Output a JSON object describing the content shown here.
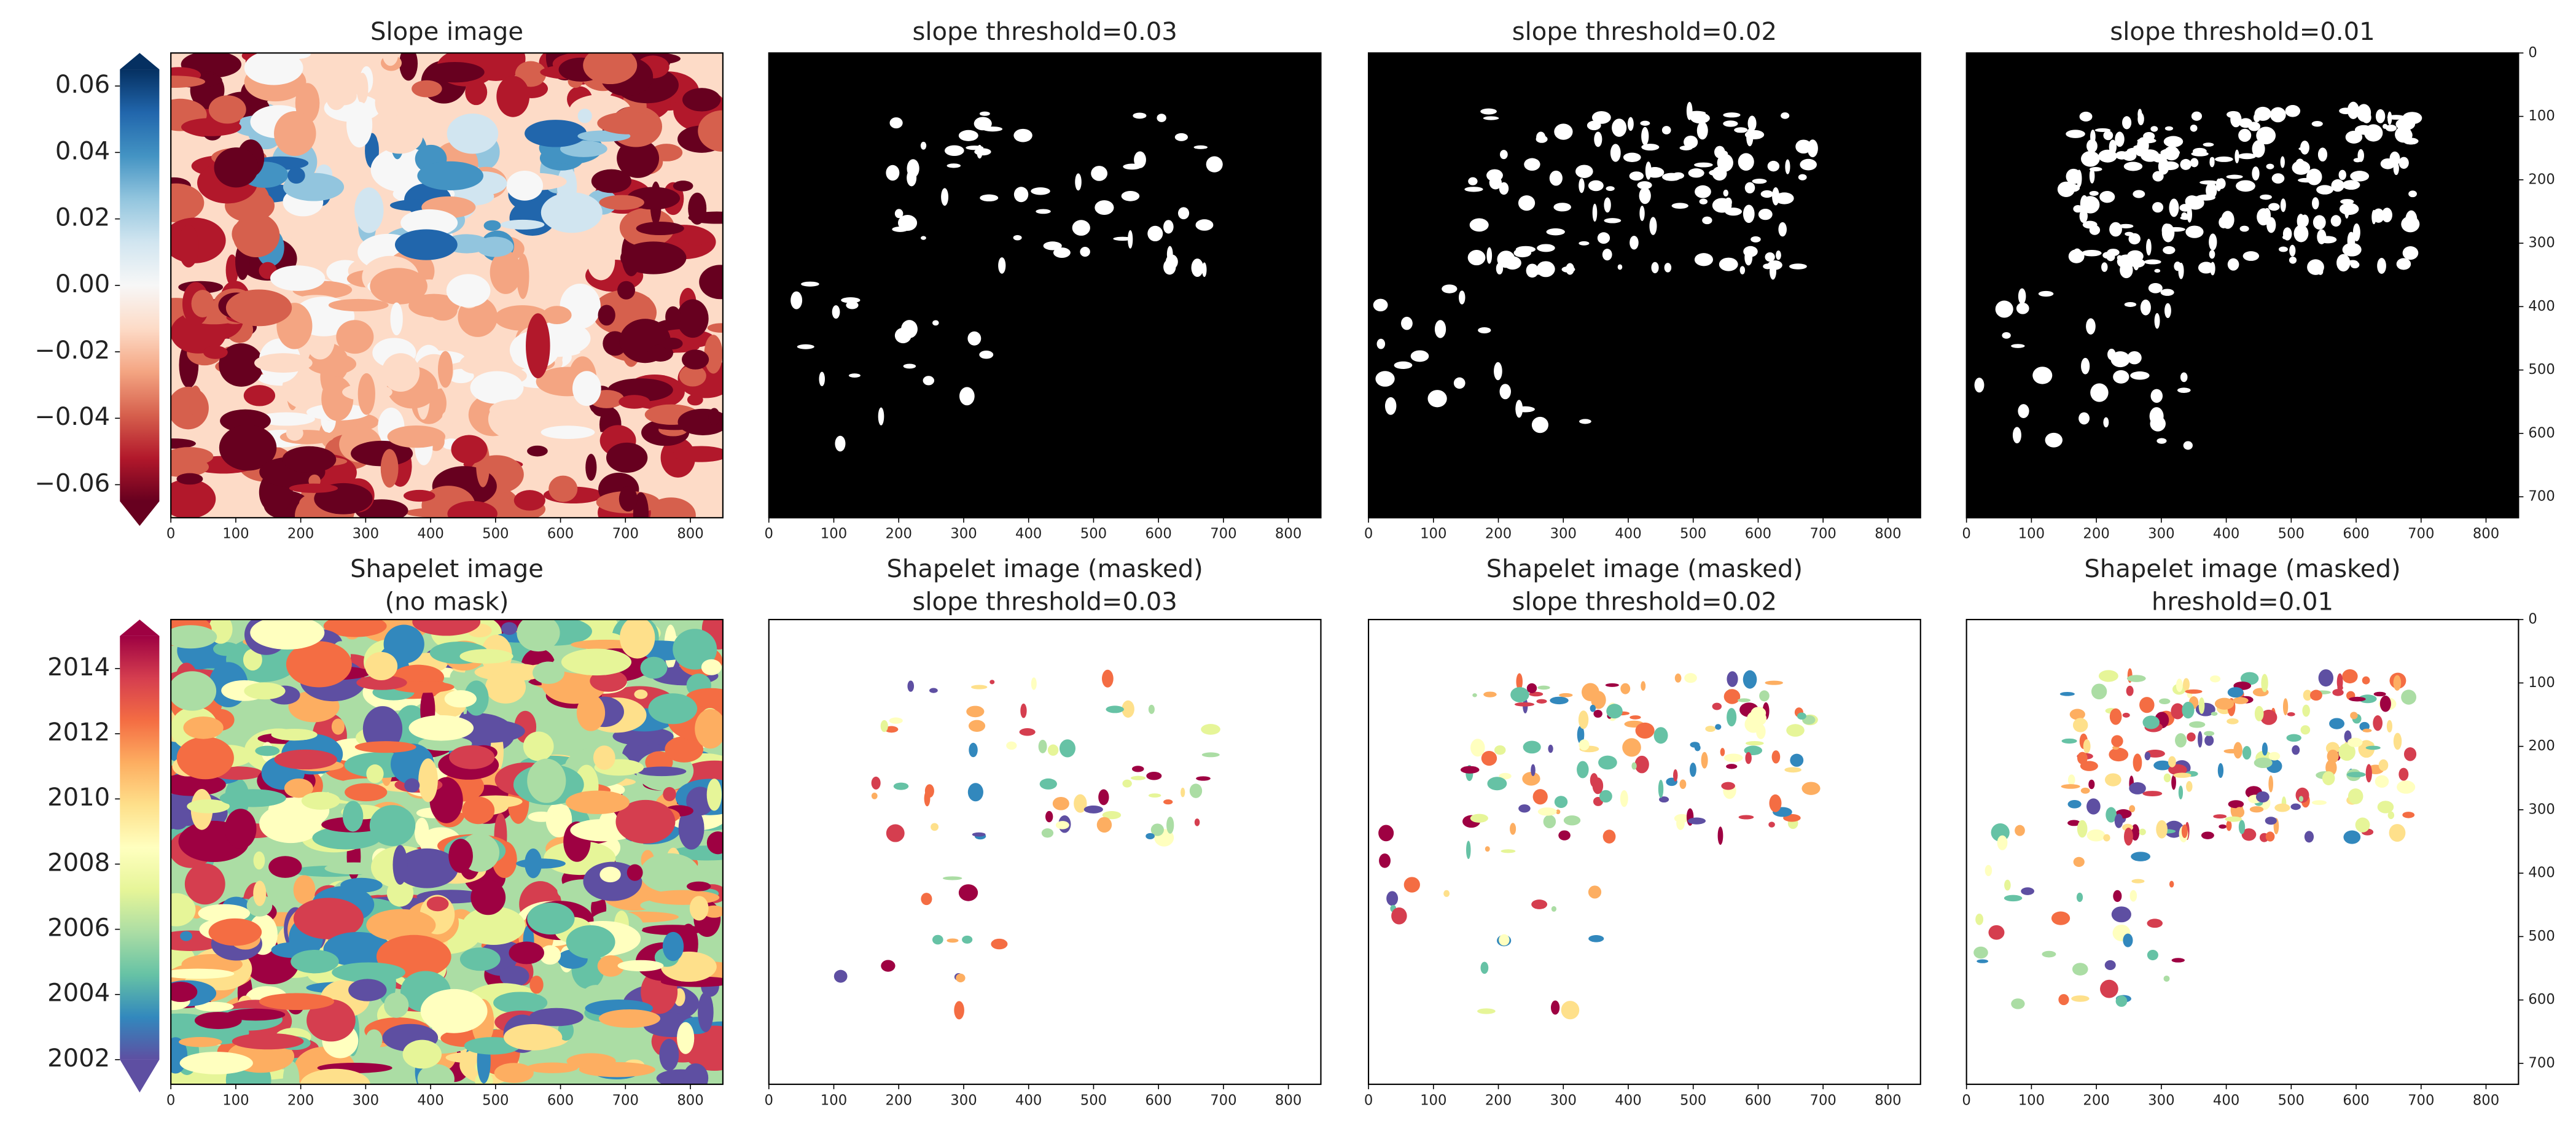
{
  "chart_data": [
    {
      "type": "image",
      "title": "Slope image",
      "xlim": [
        0,
        850
      ],
      "xticks": [
        0,
        100,
        200,
        300,
        400,
        500,
        600,
        700,
        800
      ],
      "colormap": [
        "#67001f",
        "#b2182b",
        "#d6604d",
        "#f4a582",
        "#fddbc7",
        "#f7f7f7",
        "#d1e5f0",
        "#92c5de",
        "#4393c3",
        "#2166ac",
        "#053061"
      ],
      "colorbar": {
        "clim": [
          -0.065,
          0.065
        ],
        "extend": "both",
        "ticks": [
          {
            "value": -0.06,
            "label": "−0.06"
          },
          {
            "value": -0.04,
            "label": "−0.04"
          },
          {
            "value": -0.02,
            "label": "−0.02"
          },
          {
            "value": 0,
            "label": "0.00"
          },
          0.02,
          0.04,
          0.06
        ]
      }
    },
    {
      "type": "image",
      "title": "slope threshold=0.03",
      "xlim": [
        0,
        850
      ],
      "xticks": [
        0,
        100,
        200,
        300,
        400,
        500,
        600,
        700,
        800
      ],
      "colormap": [
        "#000000",
        "#ffffff"
      ]
    },
    {
      "type": "image",
      "title": "slope threshold=0.02",
      "xlim": [
        0,
        850
      ],
      "xticks": [
        0,
        100,
        200,
        300,
        400,
        500,
        600,
        700,
        800
      ],
      "colormap": [
        "#000000",
        "#ffffff"
      ]
    },
    {
      "type": "image",
      "title": "slope threshold=0.01",
      "xlim": [
        0,
        850
      ],
      "xticks": [
        0,
        100,
        200,
        300,
        400,
        500,
        600,
        700,
        800
      ],
      "colormap": [
        "#000000",
        "#ffffff"
      ],
      "ylim": [
        733,
        0
      ],
      "yticks": [
        0,
        100,
        200,
        300,
        400,
        500,
        600,
        700
      ]
    },
    {
      "type": "image",
      "title": [
        "Shapelet image",
        "(no mask)"
      ],
      "xlim": [
        0,
        850
      ],
      "xticks": [
        0,
        100,
        200,
        300,
        400,
        500,
        600,
        700,
        800
      ],
      "colormap": [
        "#5e4fa2",
        "#3288bd",
        "#66c2a5",
        "#abdda4",
        "#e6f598",
        "#ffffbf",
        "#fee08b",
        "#fdae61",
        "#f46d43",
        "#d53e4f",
        "#9e0142"
      ],
      "colorbar": {
        "clim": [
          2002,
          2015
        ],
        "extend": "min",
        "ticks": [
          2002,
          2004,
          2006,
          2008,
          2010,
          2012,
          2014
        ]
      }
    },
    {
      "type": "image",
      "title": [
        "Shapelet image (masked)",
        "slope threshold=0.03"
      ],
      "xlim": [
        0,
        850
      ],
      "xticks": [
        0,
        100,
        200,
        300,
        400,
        500,
        600,
        700,
        800
      ],
      "masked": true,
      "colormap": [
        "#5e4fa2",
        "#3288bd",
        "#66c2a5",
        "#abdda4",
        "#e6f598",
        "#ffffbf",
        "#fee08b",
        "#fdae61",
        "#f46d43",
        "#d53e4f",
        "#9e0142"
      ]
    },
    {
      "type": "image",
      "title": [
        "Shapelet image (masked)",
        "slope threshold=0.02"
      ],
      "xlim": [
        0,
        850
      ],
      "xticks": [
        0,
        100,
        200,
        300,
        400,
        500,
        600,
        700,
        800
      ],
      "masked": true,
      "colormap": [
        "#5e4fa2",
        "#3288bd",
        "#66c2a5",
        "#abdda4",
        "#e6f598",
        "#ffffbf",
        "#fee08b",
        "#fdae61",
        "#f46d43",
        "#d53e4f",
        "#9e0142"
      ]
    },
    {
      "type": "image",
      "title": [
        "Shapelet image (masked)",
        "hreshold=0.01"
      ],
      "xlim": [
        0,
        850
      ],
      "xticks": [
        0,
        100,
        200,
        300,
        400,
        500,
        600,
        700,
        800
      ],
      "masked": true,
      "colormap": [
        "#5e4fa2",
        "#3288bd",
        "#66c2a5",
        "#abdda4",
        "#e6f598",
        "#ffffbf",
        "#fee08b",
        "#fdae61",
        "#f46d43",
        "#d53e4f",
        "#9e0142"
      ],
      "ylim": [
        733,
        0
      ],
      "yticks": [
        0,
        100,
        200,
        300,
        400,
        500,
        600,
        700
      ]
    }
  ]
}
